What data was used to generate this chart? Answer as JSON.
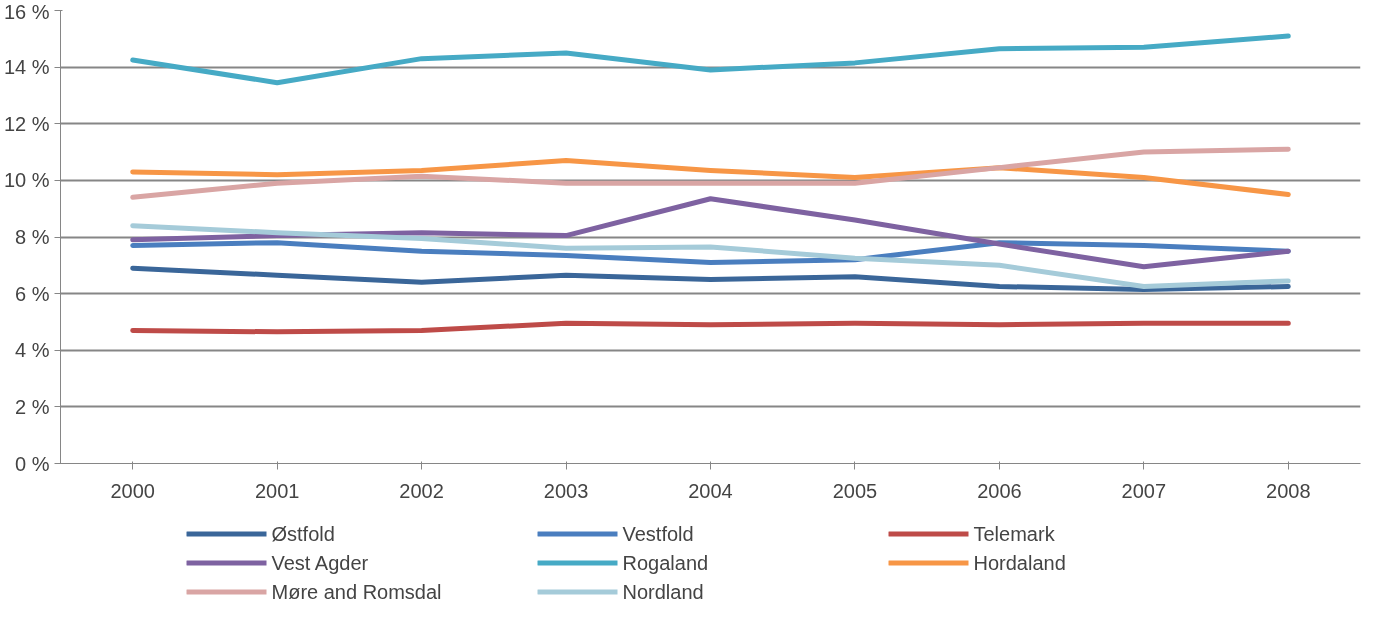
{
  "chart_data": {
    "type": "line",
    "categories": [
      "2000",
      "2001",
      "2002",
      "2003",
      "2004",
      "2005",
      "2006",
      "2007",
      "2008"
    ],
    "ylim": [
      0,
      16
    ],
    "yticks": [
      {
        "value": 0,
        "label": "0 %"
      },
      {
        "value": 2,
        "label": "2 %"
      },
      {
        "value": 4,
        "label": "4 %"
      },
      {
        "value": 6,
        "label": "6 %"
      },
      {
        "value": 8,
        "label": "8 %"
      },
      {
        "value": 10,
        "label": "10 %"
      },
      {
        "value": 12,
        "label": "12 %"
      },
      {
        "value": 14,
        "label": "14 %"
      },
      {
        "value": 16,
        "label": "16 %"
      }
    ],
    "grid": "y",
    "legend": "bottom",
    "line_style": "solid",
    "series": [
      {
        "name": "Østfold",
        "color": "#3a6699",
        "values": [
          6.9,
          6.65,
          6.4,
          6.65,
          6.5,
          6.6,
          6.25,
          6.15,
          6.25
        ]
      },
      {
        "name": "Vestfold",
        "color": "#4a7ebf",
        "values": [
          7.7,
          7.8,
          7.5,
          7.35,
          7.1,
          7.2,
          7.8,
          7.7,
          7.5
        ]
      },
      {
        "name": "Telemark",
        "color": "#be4b48",
        "values": [
          4.7,
          4.65,
          4.7,
          4.95,
          4.9,
          4.95,
          4.9,
          4.95,
          4.95
        ]
      },
      {
        "name": "Vest Agder",
        "color": "#7e62a1",
        "values": [
          7.9,
          8.05,
          8.15,
          8.05,
          9.35,
          8.6,
          7.75,
          6.95,
          7.5
        ]
      },
      {
        "name": "Rogaland",
        "color": "#46aac5",
        "values": [
          14.25,
          13.45,
          14.3,
          14.5,
          13.9,
          14.15,
          14.65,
          14.7,
          15.1
        ]
      },
      {
        "name": "Hordaland",
        "color": "#f79646",
        "values": [
          10.3,
          10.2,
          10.35,
          10.7,
          10.35,
          10.1,
          10.45,
          10.1,
          9.5
        ]
      },
      {
        "name": "Møre and Romsdal",
        "color": "#d9a5a4",
        "values": [
          9.4,
          9.9,
          10.15,
          9.9,
          9.9,
          9.9,
          10.45,
          11.0,
          11.1
        ]
      },
      {
        "name": "Nordland",
        "color": "#a5cbd9",
        "values": [
          8.4,
          8.15,
          7.95,
          7.6,
          7.65,
          7.25,
          7.0,
          6.25,
          6.45
        ]
      }
    ]
  }
}
